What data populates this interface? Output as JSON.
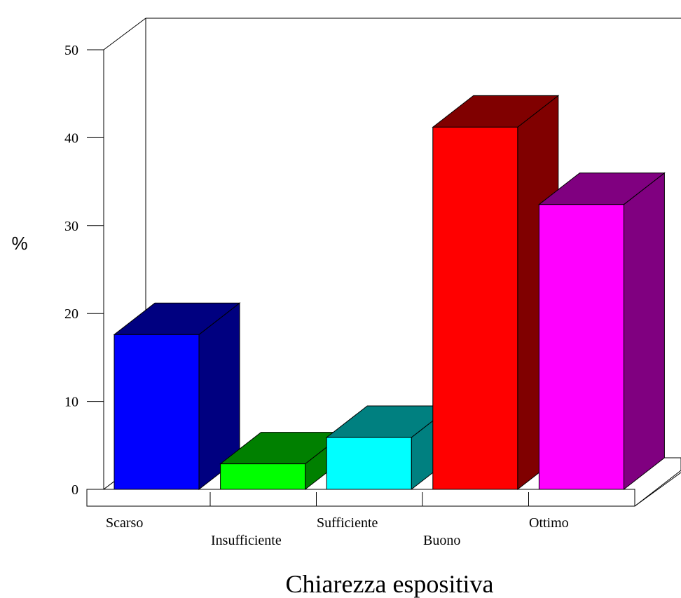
{
  "chart_data": {
    "type": "bar",
    "style": "3d",
    "categories": [
      "Scarso",
      "Insufficiente",
      "Sufficiente",
      "Buono",
      "Ottimo"
    ],
    "values": [
      17.6,
      2.9,
      5.9,
      41.2,
      32.4
    ],
    "colors": {
      "front": [
        "#0000FF",
        "#00FF00",
        "#00FFFF",
        "#FF0000",
        "#FF00FF"
      ],
      "side": [
        "#000080",
        "#008000",
        "#008080",
        "#800000",
        "#800080"
      ]
    },
    "xlabel": "Chiarezza espositiva",
    "ylabel": "%",
    "ylim": [
      0,
      50
    ],
    "yticks": [
      "0",
      "10",
      "20",
      "30",
      "40",
      "50"
    ],
    "grid": false,
    "legend": "none"
  }
}
